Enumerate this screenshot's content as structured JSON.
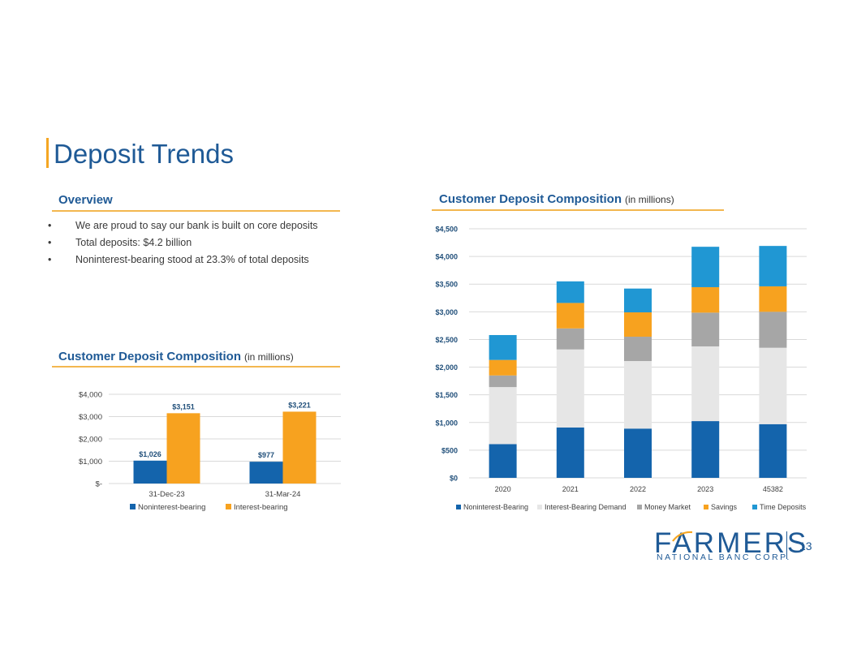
{
  "slide": {
    "title": "Deposit Trends",
    "page_number": "13"
  },
  "overview": {
    "heading": "Overview",
    "bullets": [
      "We are proud to say our bank is built on core deposits",
      "Total deposits: $4.2 billion",
      "Noninterest-bearing stood at 23.3% of total deposits"
    ],
    "bullet_glyph": "•"
  },
  "left_section": {
    "heading": "Customer  Deposit  Composition",
    "unit": "(in millions)"
  },
  "right_section": {
    "heading": "Customer  Deposit  Composition",
    "unit": "(in millions)"
  },
  "logo": {
    "word": "FARMERS",
    "sub": "NATIONAL BANC CORP."
  },
  "chart_data": [
    {
      "id": "left",
      "type": "bar",
      "categories": [
        "31-Dec-23",
        "31-Mar-24"
      ],
      "series": [
        {
          "name": "Noninterest-bearing",
          "color": "#1464ac",
          "values": [
            1026,
            977
          ],
          "labels": [
            "$1,026",
            "$977"
          ]
        },
        {
          "name": "Interest-bearing",
          "color": "#f7a21f",
          "values": [
            3151,
            3221
          ],
          "labels": [
            "$3,151",
            "$3,221"
          ]
        }
      ],
      "ylim": [
        0,
        4000
      ],
      "yticks": [
        0,
        1000,
        2000,
        3000,
        4000
      ],
      "ytick_labels": [
        "$-",
        "$1,000",
        "$2,000",
        "$3,000",
        "$4,000"
      ],
      "legend": "bottom"
    },
    {
      "id": "right",
      "type": "bar",
      "stacked": true,
      "categories": [
        "2020",
        "2021",
        "2022",
        "2023",
        "45382"
      ],
      "series": [
        {
          "name": "Noninterest-Bearing",
          "color": "#1464ac",
          "values": [
            610,
            910,
            890,
            1025,
            970
          ]
        },
        {
          "name": "Interest-Bearing Demand",
          "color": "#e6e6e6",
          "values": [
            1030,
            1410,
            1220,
            1350,
            1380
          ]
        },
        {
          "name": "Money Market",
          "color": "#a6a6a6",
          "values": [
            210,
            380,
            440,
            610,
            650
          ]
        },
        {
          "name": "Savings",
          "color": "#f7a21f",
          "values": [
            280,
            460,
            440,
            460,
            460
          ]
        },
        {
          "name": "Time Deposits",
          "color": "#2097d3",
          "values": [
            450,
            390,
            430,
            730,
            730
          ]
        }
      ],
      "ylim": [
        0,
        4500
      ],
      "yticks": [
        0,
        500,
        1000,
        1500,
        2000,
        2500,
        3000,
        3500,
        4000,
        4500
      ],
      "ytick_labels": [
        "$0",
        "$500",
        "$1,000",
        "$1,500",
        "$2,000",
        "$2,500",
        "$3,000",
        "$3,500",
        "$4,000",
        "$4,500"
      ],
      "legend": "bottom"
    }
  ]
}
